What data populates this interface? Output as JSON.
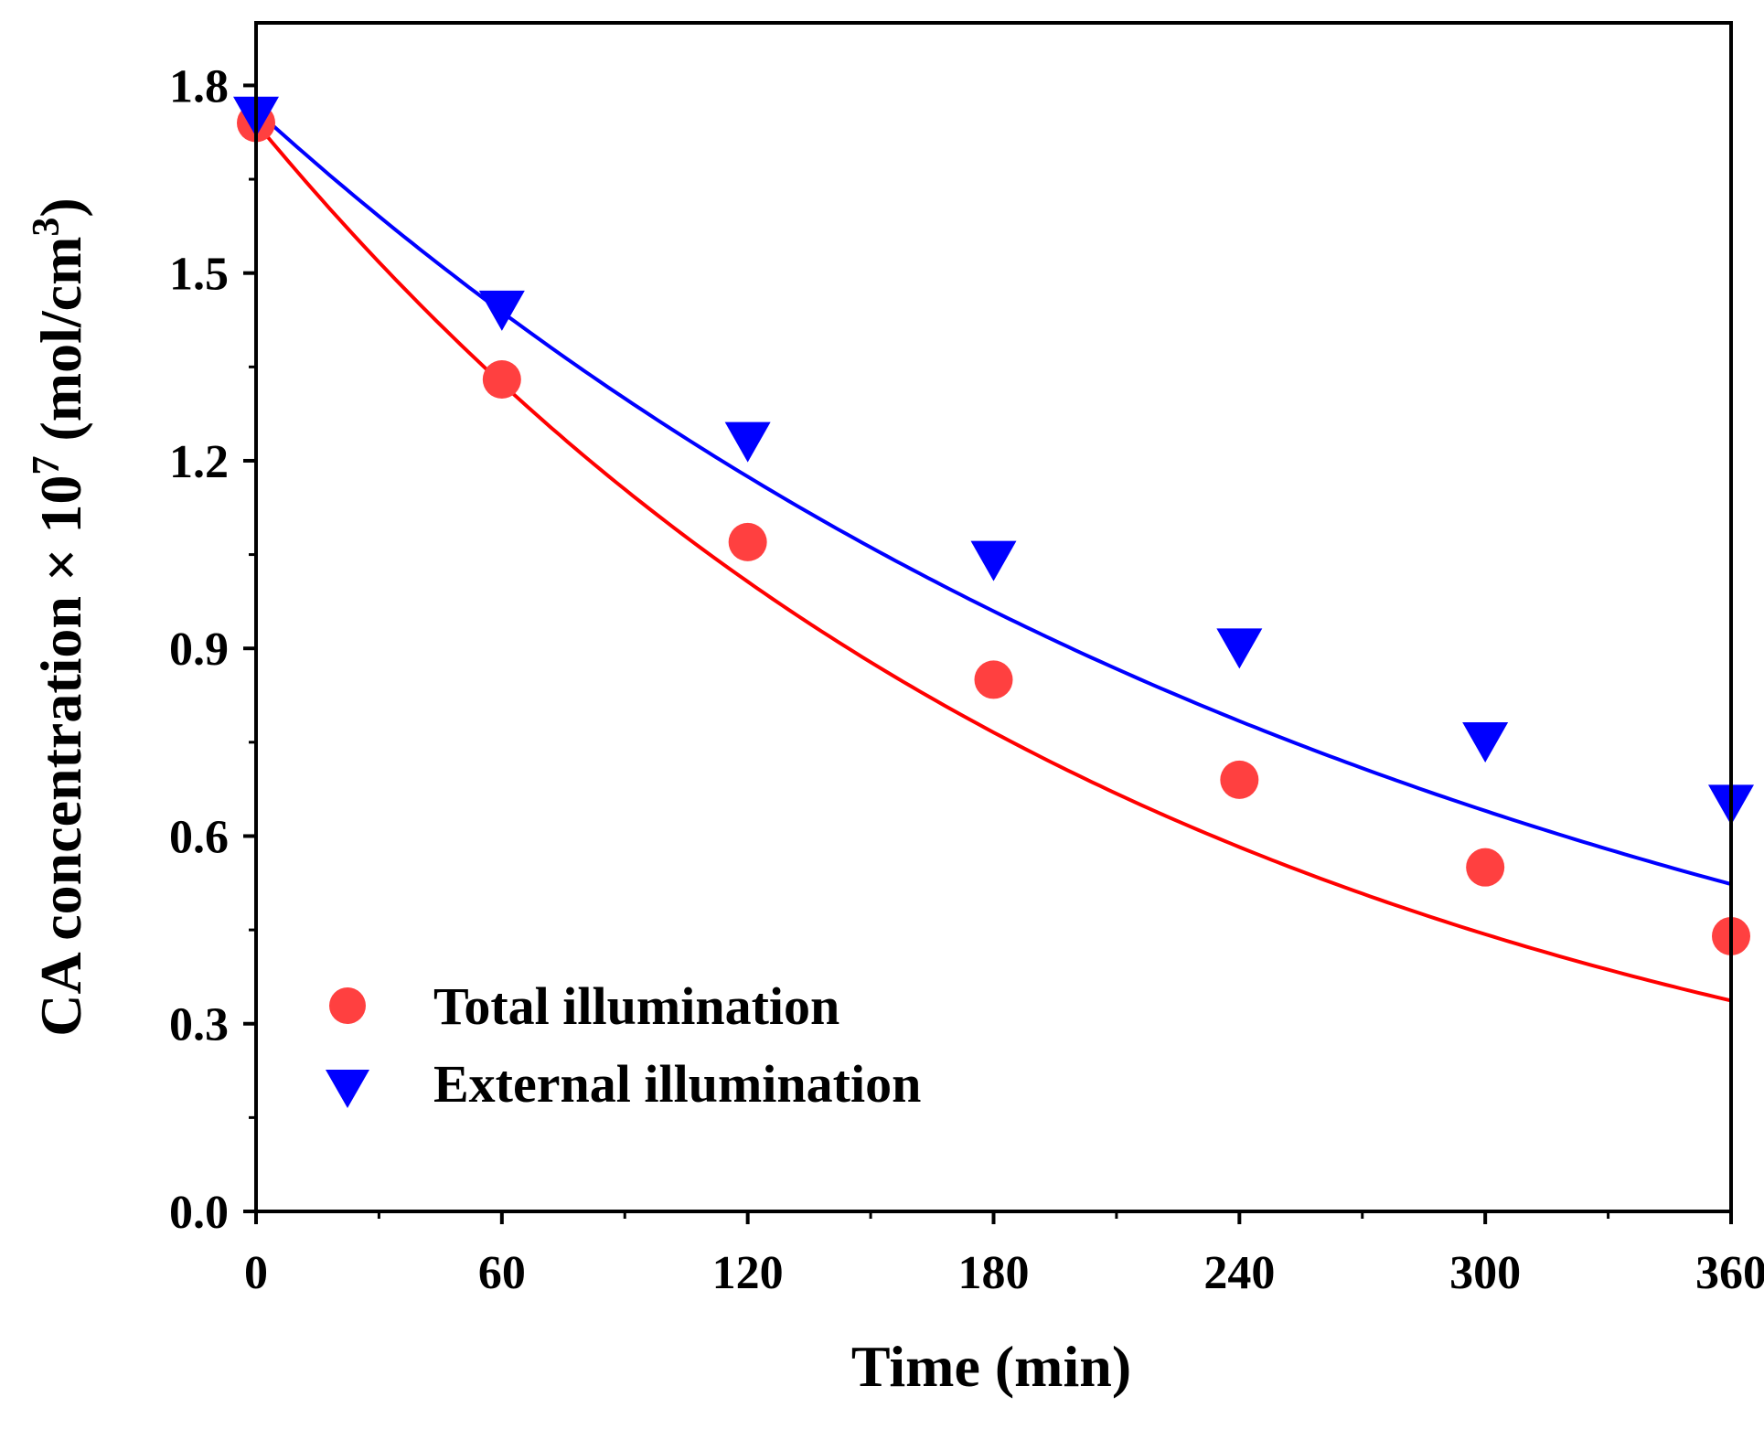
{
  "chart_data": {
    "type": "scatter",
    "xlabel": "Time (min)",
    "ylabel": {
      "main": "CA concentration × 10",
      "exp": "7",
      "unit_main": " (mol/cm",
      "unit_exp": "3",
      "unit_close": ")"
    },
    "xlim": [
      0,
      360
    ],
    "ylim": [
      0,
      1.9
    ],
    "x_ticks": [
      0,
      60,
      120,
      180,
      240,
      300,
      360
    ],
    "x_tick_labels": [
      "0",
      "60",
      "120",
      "180",
      "240",
      "300",
      "360"
    ],
    "x_minor_ticks": [
      30,
      90,
      150,
      210,
      270,
      330
    ],
    "y_ticks": [
      0,
      0.3,
      0.6,
      0.9,
      1.2,
      1.5,
      1.8
    ],
    "y_tick_labels": [
      "0.0",
      "0.3",
      "0.6",
      "0.9",
      "1.2",
      "1.5",
      "1.8"
    ],
    "y_minor_ticks": [
      0.15,
      0.45,
      0.75,
      1.05,
      1.35,
      1.65
    ],
    "legend_position": "bottom-left",
    "grid": false,
    "series": [
      {
        "name": "Total illumination",
        "marker": "circle",
        "color": "#ff4040",
        "fit_color": "#ff0000",
        "x": [
          0,
          60,
          120,
          180,
          240,
          300,
          360
        ],
        "y": [
          1.74,
          1.33,
          1.07,
          0.85,
          0.69,
          0.55,
          0.44
        ],
        "fit": {
          "y0": 1.74,
          "k": 0.00456
        }
      },
      {
        "name": "External illumination",
        "marker": "triangle-down",
        "color": "#0000ff",
        "fit_color": "#0000ff",
        "x": [
          0,
          60,
          120,
          180,
          240,
          300,
          360
        ],
        "y": [
          1.76,
          1.45,
          1.24,
          1.05,
          0.91,
          0.76,
          0.66
        ],
        "fit": {
          "y0": 1.76,
          "k": 0.00337
        }
      }
    ]
  }
}
